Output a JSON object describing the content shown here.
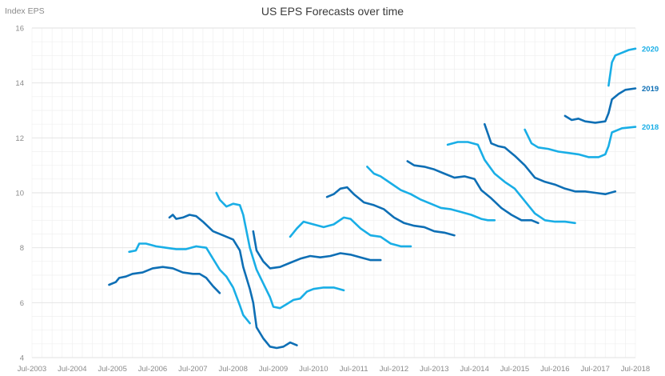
{
  "chart_data": {
    "type": "line",
    "title": "US EPS Forecasts over time",
    "ylabel": "Index EPS",
    "xlabel": "",
    "ylim": [
      4,
      16
    ],
    "xlim": [
      "2003-07",
      "2018-07"
    ],
    "y_ticks": [
      4,
      6,
      8,
      10,
      12,
      14,
      16
    ],
    "x_ticks": [
      "Jul-2003",
      "Jul-2004",
      "Jul-2005",
      "Jul-2006",
      "Jul-2007",
      "Jul-2008",
      "Jul-2009",
      "Jul-2010",
      "Jul-2011",
      "Jul-2012",
      "Jul-2013",
      "Jul-2014",
      "Jul-2015",
      "Jul-2016",
      "Jul-2017",
      "Jul-2018"
    ],
    "grid": true,
    "colors": {
      "dark": "#0e6fb5",
      "light": "#19aee6"
    },
    "series": [
      {
        "color": "dark",
        "points": [
          [
            "2005-06",
            6.65
          ],
          [
            "2005-08",
            6.75
          ],
          [
            "2005-09",
            6.9
          ],
          [
            "2005-11",
            6.95
          ],
          [
            "2006-01",
            7.05
          ],
          [
            "2006-04",
            7.1
          ],
          [
            "2006-07",
            7.25
          ],
          [
            "2006-10",
            7.3
          ],
          [
            "2007-01",
            7.25
          ],
          [
            "2007-04",
            7.1
          ],
          [
            "2007-07",
            7.05
          ],
          [
            "2007-09",
            7.05
          ],
          [
            "2007-11",
            6.9
          ],
          [
            "2008-01",
            6.6
          ],
          [
            "2008-03",
            6.35
          ]
        ]
      },
      {
        "color": "light",
        "points": [
          [
            "2005-12",
            7.85
          ],
          [
            "2006-02",
            7.9
          ],
          [
            "2006-03",
            8.15
          ],
          [
            "2006-05",
            8.15
          ],
          [
            "2006-08",
            8.05
          ],
          [
            "2006-11",
            8.0
          ],
          [
            "2007-02",
            7.95
          ],
          [
            "2007-05",
            7.95
          ],
          [
            "2007-08",
            8.05
          ],
          [
            "2007-11",
            8.0
          ],
          [
            "2008-01",
            7.6
          ],
          [
            "2008-03",
            7.2
          ],
          [
            "2008-05",
            6.95
          ],
          [
            "2008-07",
            6.55
          ],
          [
            "2008-09",
            5.9
          ],
          [
            "2008-10",
            5.55
          ],
          [
            "2008-12",
            5.25
          ]
        ]
      },
      {
        "color": "dark",
        "points": [
          [
            "2006-12",
            9.1
          ],
          [
            "2007-01",
            9.2
          ],
          [
            "2007-02",
            9.05
          ],
          [
            "2007-04",
            9.1
          ],
          [
            "2007-06",
            9.2
          ],
          [
            "2007-08",
            9.15
          ],
          [
            "2007-10",
            8.95
          ],
          [
            "2008-01",
            8.6
          ],
          [
            "2008-04",
            8.45
          ],
          [
            "2008-07",
            8.3
          ],
          [
            "2008-09",
            7.9
          ],
          [
            "2008-10",
            7.3
          ],
          [
            "2008-12",
            6.5
          ],
          [
            "2009-01",
            6.0
          ],
          [
            "2009-02",
            5.1
          ],
          [
            "2009-04",
            4.7
          ],
          [
            "2009-06",
            4.4
          ],
          [
            "2009-08",
            4.35
          ],
          [
            "2009-10",
            4.4
          ],
          [
            "2009-12",
            4.55
          ],
          [
            "2010-02",
            4.45
          ]
        ]
      },
      {
        "color": "light",
        "points": [
          [
            "2008-02",
            10.0
          ],
          [
            "2008-03",
            9.75
          ],
          [
            "2008-05",
            9.5
          ],
          [
            "2008-07",
            9.6
          ],
          [
            "2008-09",
            9.55
          ],
          [
            "2008-10",
            9.2
          ],
          [
            "2008-12",
            8.0
          ],
          [
            "2009-02",
            7.2
          ],
          [
            "2009-04",
            6.7
          ],
          [
            "2009-06",
            6.2
          ],
          [
            "2009-07",
            5.85
          ],
          [
            "2009-09",
            5.8
          ],
          [
            "2009-11",
            5.95
          ],
          [
            "2010-01",
            6.1
          ],
          [
            "2010-03",
            6.15
          ],
          [
            "2010-05",
            6.4
          ],
          [
            "2010-07",
            6.5
          ],
          [
            "2010-10",
            6.55
          ],
          [
            "2011-01",
            6.55
          ],
          [
            "2011-04",
            6.45
          ]
        ]
      },
      {
        "color": "dark",
        "points": [
          [
            "2009-01",
            8.6
          ],
          [
            "2009-02",
            7.9
          ],
          [
            "2009-04",
            7.5
          ],
          [
            "2009-06",
            7.25
          ],
          [
            "2009-09",
            7.3
          ],
          [
            "2009-12",
            7.45
          ],
          [
            "2010-03",
            7.6
          ],
          [
            "2010-06",
            7.7
          ],
          [
            "2010-09",
            7.65
          ],
          [
            "2010-12",
            7.7
          ],
          [
            "2011-03",
            7.8
          ],
          [
            "2011-06",
            7.75
          ],
          [
            "2011-09",
            7.65
          ],
          [
            "2011-12",
            7.55
          ],
          [
            "2012-03",
            7.55
          ]
        ]
      },
      {
        "color": "light",
        "points": [
          [
            "2009-12",
            8.4
          ],
          [
            "2010-02",
            8.7
          ],
          [
            "2010-04",
            8.95
          ],
          [
            "2010-07",
            8.85
          ],
          [
            "2010-10",
            8.75
          ],
          [
            "2011-01",
            8.85
          ],
          [
            "2011-04",
            9.1
          ],
          [
            "2011-06",
            9.05
          ],
          [
            "2011-09",
            8.7
          ],
          [
            "2011-12",
            8.45
          ],
          [
            "2012-03",
            8.4
          ],
          [
            "2012-06",
            8.15
          ],
          [
            "2012-09",
            8.05
          ],
          [
            "2012-12",
            8.05
          ]
        ]
      },
      {
        "color": "dark",
        "points": [
          [
            "2010-11",
            9.85
          ],
          [
            "2011-01",
            9.95
          ],
          [
            "2011-03",
            10.15
          ],
          [
            "2011-05",
            10.2
          ],
          [
            "2011-07",
            9.95
          ],
          [
            "2011-10",
            9.65
          ],
          [
            "2012-01",
            9.55
          ],
          [
            "2012-04",
            9.4
          ],
          [
            "2012-07",
            9.1
          ],
          [
            "2012-10",
            8.9
          ],
          [
            "2013-01",
            8.8
          ],
          [
            "2013-04",
            8.75
          ],
          [
            "2013-07",
            8.6
          ],
          [
            "2013-10",
            8.55
          ],
          [
            "2014-01",
            8.45
          ]
        ]
      },
      {
        "color": "light",
        "points": [
          [
            "2011-11",
            10.95
          ],
          [
            "2012-01",
            10.7
          ],
          [
            "2012-03",
            10.6
          ],
          [
            "2012-06",
            10.35
          ],
          [
            "2012-09",
            10.1
          ],
          [
            "2012-12",
            9.95
          ],
          [
            "2013-03",
            9.75
          ],
          [
            "2013-06",
            9.6
          ],
          [
            "2013-09",
            9.45
          ],
          [
            "2013-12",
            9.4
          ],
          [
            "2014-03",
            9.3
          ],
          [
            "2014-06",
            9.2
          ],
          [
            "2014-09",
            9.05
          ],
          [
            "2014-11",
            9.0
          ],
          [
            "2015-01",
            9.0
          ]
        ]
      },
      {
        "color": "dark",
        "points": [
          [
            "2012-11",
            11.15
          ],
          [
            "2013-01",
            11.0
          ],
          [
            "2013-04",
            10.95
          ],
          [
            "2013-07",
            10.85
          ],
          [
            "2013-10",
            10.7
          ],
          [
            "2014-01",
            10.55
          ],
          [
            "2014-04",
            10.6
          ],
          [
            "2014-07",
            10.5
          ],
          [
            "2014-09",
            10.1
          ],
          [
            "2014-12",
            9.8
          ],
          [
            "2015-03",
            9.45
          ],
          [
            "2015-06",
            9.2
          ],
          [
            "2015-09",
            9.0
          ],
          [
            "2015-12",
            9.0
          ],
          [
            "2016-02",
            8.9
          ]
        ]
      },
      {
        "color": "light",
        "points": [
          [
            "2013-11",
            11.75
          ],
          [
            "2014-02",
            11.85
          ],
          [
            "2014-05",
            11.85
          ],
          [
            "2014-08",
            11.75
          ],
          [
            "2014-10",
            11.2
          ],
          [
            "2015-01",
            10.7
          ],
          [
            "2015-04",
            10.4
          ],
          [
            "2015-07",
            10.15
          ],
          [
            "2015-10",
            9.7
          ],
          [
            "2016-01",
            9.25
          ],
          [
            "2016-04",
            9.0
          ],
          [
            "2016-07",
            8.95
          ],
          [
            "2016-10",
            8.95
          ],
          [
            "2017-01",
            8.9
          ]
        ]
      },
      {
        "color": "dark",
        "points": [
          [
            "2014-10",
            12.5
          ],
          [
            "2014-12",
            11.8
          ],
          [
            "2015-02",
            11.7
          ],
          [
            "2015-04",
            11.65
          ],
          [
            "2015-07",
            11.35
          ],
          [
            "2015-10",
            11.0
          ],
          [
            "2016-01",
            10.55
          ],
          [
            "2016-04",
            10.4
          ],
          [
            "2016-07",
            10.3
          ],
          [
            "2016-10",
            10.15
          ],
          [
            "2017-01",
            10.05
          ],
          [
            "2017-04",
            10.05
          ],
          [
            "2017-07",
            10.0
          ],
          [
            "2017-10",
            9.95
          ],
          [
            "2018-01",
            10.05
          ]
        ]
      },
      {
        "color": "light",
        "points": [
          [
            "2015-10",
            12.3
          ],
          [
            "2015-12",
            11.8
          ],
          [
            "2016-02",
            11.65
          ],
          [
            "2016-05",
            11.6
          ],
          [
            "2016-08",
            11.5
          ],
          [
            "2016-11",
            11.45
          ],
          [
            "2017-02",
            11.4
          ],
          [
            "2017-05",
            11.3
          ],
          [
            "2017-08",
            11.3
          ],
          [
            "2017-10",
            11.4
          ],
          [
            "2017-11",
            11.7
          ],
          [
            "2017-12",
            12.2
          ],
          [
            "2018-03",
            12.35
          ],
          [
            "2018-07",
            12.4
          ]
        ]
      },
      {
        "color": "dark",
        "points": [
          [
            "2016-10",
            12.8
          ],
          [
            "2016-12",
            12.65
          ],
          [
            "2017-02",
            12.7
          ],
          [
            "2017-04",
            12.6
          ],
          [
            "2017-07",
            12.55
          ],
          [
            "2017-10",
            12.6
          ],
          [
            "2017-11",
            12.9
          ],
          [
            "2017-12",
            13.4
          ],
          [
            "2018-02",
            13.6
          ],
          [
            "2018-04",
            13.75
          ],
          [
            "2018-07",
            13.8
          ]
        ]
      },
      {
        "color": "light",
        "points": [
          [
            "2017-11",
            13.9
          ],
          [
            "2017-12",
            14.75
          ],
          [
            "2018-01",
            15.0
          ],
          [
            "2018-03",
            15.1
          ],
          [
            "2018-05",
            15.2
          ],
          [
            "2018-07",
            15.25
          ]
        ]
      }
    ],
    "end_labels": [
      {
        "text": "2020",
        "color": "light",
        "y": 15.25
      },
      {
        "text": "2019",
        "color": "dark",
        "y": 13.8
      },
      {
        "text": "2018",
        "color": "light",
        "y": 12.4
      }
    ]
  }
}
